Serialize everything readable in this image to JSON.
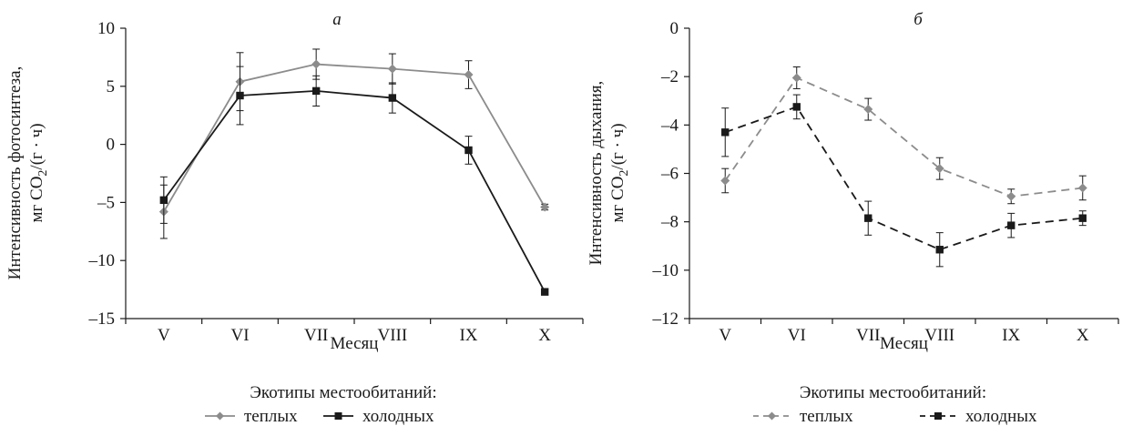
{
  "colors": {
    "warm": "#8c8c8c",
    "cold": "#1a1a1a",
    "axis": "#1a1a1a"
  },
  "chart_data": [
    {
      "type": "line",
      "panel_label": "а",
      "categories": [
        "V",
        "VI",
        "VII",
        "VIII",
        "IX",
        "X"
      ],
      "ylim": [
        -15,
        10
      ],
      "yticks": [
        10,
        5,
        0,
        -5,
        -10,
        -15
      ],
      "ytick_labels": [
        "10",
        "5",
        "0",
        "–5",
        "–10",
        "–15"
      ],
      "xlabel": "Месяц",
      "ylabel_line1": "Интенсивность фотосинтеза,",
      "ylabel_line2_pre": "мг CO",
      "ylabel_line2_sub": "2",
      "ylabel_line2_post": "/(г · ч)",
      "legend_title": "Экотипы местообитаний:",
      "line_style": "solid",
      "grid": false,
      "series": [
        {
          "name": "теплых",
          "marker": "diamond",
          "color_key": "warm",
          "values": [
            -5.8,
            5.4,
            6.9,
            6.5,
            6.0,
            -5.4
          ],
          "errors": [
            2.3,
            2.5,
            1.3,
            1.3,
            1.2,
            0.25
          ]
        },
        {
          "name": "холодных",
          "marker": "square",
          "color_key": "cold",
          "values": [
            -4.8,
            4.2,
            4.6,
            4.0,
            -0.5,
            -12.7
          ],
          "errors": [
            2.0,
            2.5,
            1.3,
            1.3,
            1.2,
            0.25
          ]
        }
      ]
    },
    {
      "type": "line",
      "panel_label": "б",
      "categories": [
        "V",
        "VI",
        "VII",
        "VIII",
        "IX",
        "X"
      ],
      "ylim": [
        -12,
        0
      ],
      "yticks": [
        0,
        -2,
        -4,
        -6,
        -8,
        -10,
        -12
      ],
      "ytick_labels": [
        "0",
        "–2",
        "–4",
        "–6",
        "–8",
        "–10",
        "–12"
      ],
      "xlabel": "Месяц",
      "ylabel_line1": "Интенсивность дыхания,",
      "ylabel_line2_pre": "мг CO",
      "ylabel_line2_sub": "2",
      "ylabel_line2_post": "/(г · ч)",
      "legend_title": "Экотипы местообитаний:",
      "line_style": "dashed",
      "grid": false,
      "series": [
        {
          "name": "теплых",
          "marker": "diamond",
          "color_key": "warm",
          "values": [
            -6.3,
            -2.05,
            -3.35,
            -5.8,
            -6.95,
            -6.6
          ],
          "errors": [
            0.5,
            0.45,
            0.45,
            0.45,
            0.3,
            0.5
          ]
        },
        {
          "name": "холодных",
          "marker": "square",
          "color_key": "cold",
          "values": [
            -4.3,
            -3.25,
            -7.85,
            -9.15,
            -8.15,
            -7.85
          ],
          "errors": [
            1.0,
            0.5,
            0.7,
            0.7,
            0.5,
            0.3
          ]
        }
      ]
    }
  ]
}
